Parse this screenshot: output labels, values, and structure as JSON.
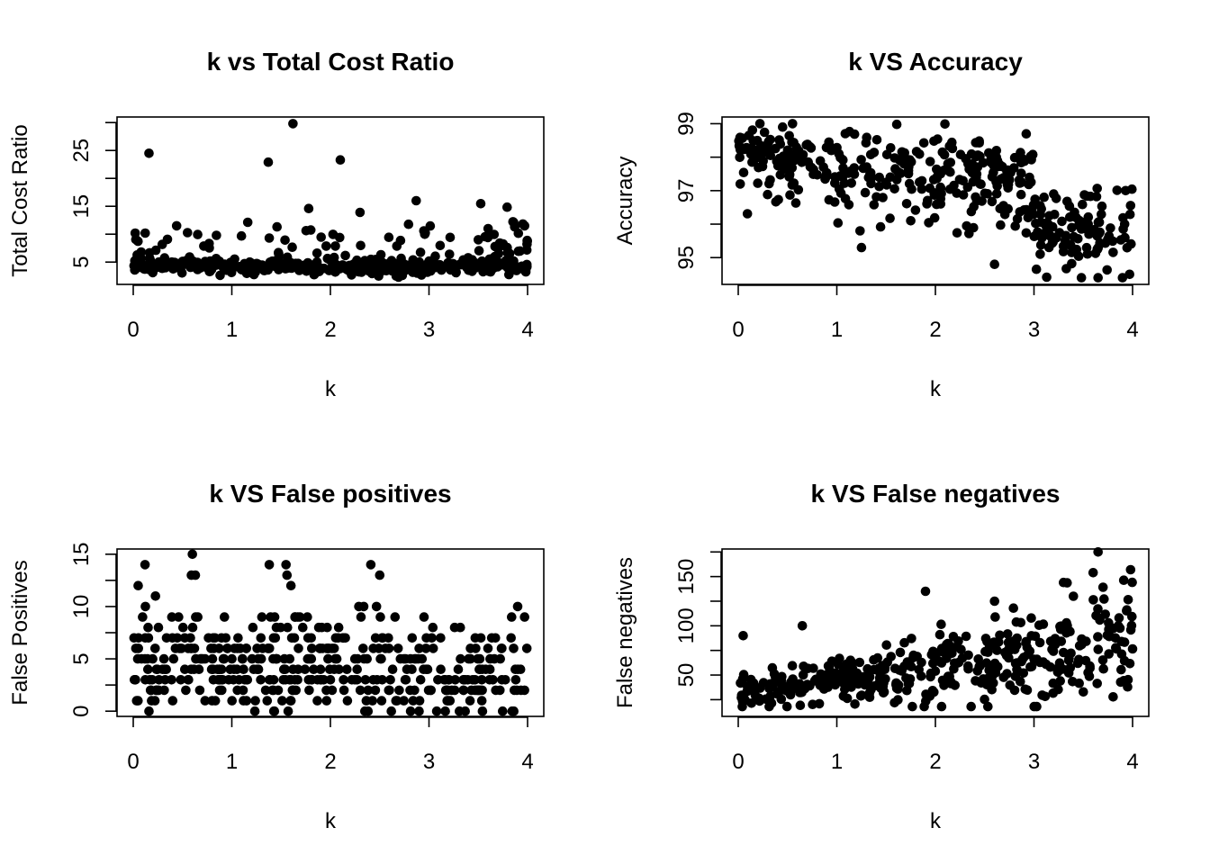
{
  "chart_data": [
    {
      "type": "scatter",
      "title": "k vs Total Cost Ratio",
      "xlabel": "k",
      "ylabel": "Total Cost Ratio",
      "xlim": [
        0,
        4
      ],
      "ylim": [
        1,
        31
      ],
      "xticks": [
        0,
        1,
        2,
        3,
        4
      ],
      "yticks": [
        5,
        15,
        25
      ],
      "n_points": 420,
      "seed": 11,
      "pattern": "tcr",
      "outliers": [
        [
          0.16,
          24.5
        ],
        [
          1.37,
          22.9
        ],
        [
          1.62,
          29.8
        ],
        [
          1.78,
          14.6
        ],
        [
          2.1,
          23.3
        ],
        [
          2.3,
          13.9
        ],
        [
          2.87,
          16.0
        ],
        [
          0.44,
          11.5
        ],
        [
          3.97,
          11.5
        ],
        [
          3.86,
          12.1
        ],
        [
          3.6,
          11.0
        ],
        [
          0.02,
          10.2
        ],
        [
          3.5,
          9.0
        ],
        [
          1.38,
          9.3
        ]
      ]
    },
    {
      "type": "scatter",
      "title": "k VS Accuracy",
      "xlabel": "k",
      "ylabel": "Accuracy",
      "xlim": [
        0,
        4
      ],
      "ylim": [
        94.2,
        99.2
      ],
      "xticks": [
        0,
        1,
        2,
        3,
        4
      ],
      "yticks": [
        95,
        97,
        99
      ],
      "n_points": 420,
      "seed": 23,
      "pattern": "acc",
      "outliers": [
        [
          0.22,
          99.0
        ],
        [
          0.45,
          98.9
        ],
        [
          1.25,
          95.3
        ],
        [
          1.75,
          96.1
        ],
        [
          2.6,
          94.8
        ],
        [
          3.65,
          94.4
        ],
        [
          3.97,
          94.5
        ],
        [
          3.93,
          97.0
        ],
        [
          3.2,
          96.9
        ],
        [
          0.02,
          97.2
        ]
      ]
    },
    {
      "type": "scatter",
      "title": "k VS False positives",
      "xlabel": "k",
      "ylabel": "False Positives",
      "xlim": [
        0,
        4
      ],
      "ylim": [
        -0.5,
        15.5
      ],
      "xticks": [
        0,
        1,
        2,
        3,
        4
      ],
      "yticks": [
        0,
        5,
        10,
        15
      ],
      "n_points": 420,
      "seed": 37,
      "pattern": "fp",
      "outliers": [
        [
          0.12,
          14
        ],
        [
          0.6,
          15
        ],
        [
          0.59,
          13
        ],
        [
          0.63,
          13
        ],
        [
          1.38,
          14
        ],
        [
          1.55,
          14
        ],
        [
          1.56,
          13
        ],
        [
          1.6,
          12
        ],
        [
          2.41,
          14
        ],
        [
          2.5,
          13
        ],
        [
          0.05,
          12
        ],
        [
          0.16,
          0
        ],
        [
          3.9,
          10
        ],
        [
          3.97,
          9
        ]
      ]
    },
    {
      "type": "scatter",
      "title": "k VS False negatives",
      "xlabel": "k",
      "ylabel": "False negatives",
      "xlim": [
        0,
        4
      ],
      "ylim": [
        8,
        178
      ],
      "xticks": [
        0,
        1,
        2,
        3,
        4
      ],
      "yticks": [
        50,
        100,
        150
      ],
      "n_points": 420,
      "seed": 53,
      "pattern": "fn",
      "outliers": [
        [
          3.65,
          175
        ],
        [
          3.98,
          157
        ],
        [
          3.3,
          144
        ],
        [
          1.9,
          135
        ],
        [
          0.65,
          100
        ],
        [
          3.95,
          38
        ],
        [
          3.6,
          154
        ],
        [
          3.4,
          130
        ],
        [
          2.6,
          125
        ],
        [
          0.05,
          90
        ]
      ]
    }
  ]
}
